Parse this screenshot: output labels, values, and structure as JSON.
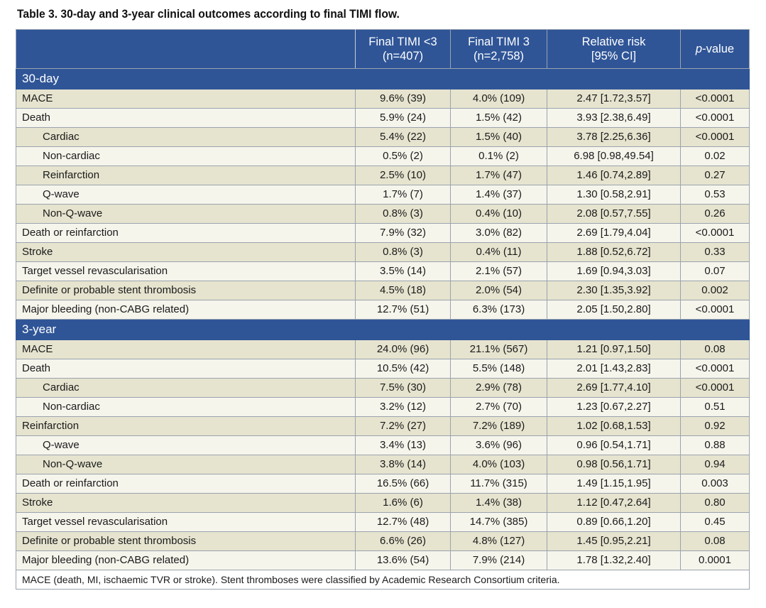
{
  "caption": "Table 3. 30-day and 3-year clinical outcomes according to final TIMI flow.",
  "headers": {
    "col1_line1": "Final TIMI <3",
    "col1_line2": "(n=407)",
    "col2_line1": "Final TIMI 3",
    "col2_line2": "(n=2,758)",
    "col3_line1": "Relative risk",
    "col3_line2": "[95% CI]",
    "col4_italic": "p",
    "col4_rest": "-value"
  },
  "sections": [
    {
      "title": "30-day",
      "rows": [
        {
          "label": "MACE",
          "timi_lt3": "9.6% (39)",
          "timi3": "4.0% (109)",
          "rr": "2.47 [1.72,3.57]",
          "p": "<0.0001"
        },
        {
          "label": "Death",
          "timi_lt3": "5.9% (24)",
          "timi3": "1.5% (42)",
          "rr": "3.93 [2.38,6.49]",
          "p": "<0.0001"
        },
        {
          "label": "Cardiac",
          "timi_lt3": "5.4% (22)",
          "timi3": "1.5% (40)",
          "rr": "3.78 [2.25,6.36]",
          "p": "<0.0001"
        },
        {
          "label": "Non-cardiac",
          "timi_lt3": "0.5% (2)",
          "timi3": "0.1% (2)",
          "rr": "6.98 [0.98,49.54]",
          "p": "0.02"
        },
        {
          "label": "Reinfarction",
          "timi_lt3": "2.5% (10)",
          "timi3": "1.7% (47)",
          "rr": "1.46 [0.74,2.89]",
          "p": "0.27"
        },
        {
          "label": "Q-wave",
          "timi_lt3": "1.7% (7)",
          "timi3": "1.4% (37)",
          "rr": "1.30 [0.58,2.91]",
          "p": "0.53"
        },
        {
          "label": "Non-Q-wave",
          "timi_lt3": "0.8% (3)",
          "timi3": "0.4% (10)",
          "rr": "2.08 [0.57,7.55]",
          "p": "0.26"
        },
        {
          "label": "Death or reinfarction",
          "timi_lt3": "7.9% (32)",
          "timi3": "3.0% (82)",
          "rr": "2.69 [1.79,4.04]",
          "p": "<0.0001"
        },
        {
          "label": "Stroke",
          "timi_lt3": "0.8% (3)",
          "timi3": "0.4% (11)",
          "rr": "1.88 [0.52,6.72]",
          "p": "0.33"
        },
        {
          "label": "Target vessel revascularisation",
          "timi_lt3": "3.5% (14)",
          "timi3": "2.1% (57)",
          "rr": "1.69 [0.94,3.03]",
          "p": "0.07"
        },
        {
          "label": "Definite or probable stent thrombosis",
          "timi_lt3": "4.5% (18)",
          "timi3": "2.0% (54)",
          "rr": "2.30 [1.35,3.92]",
          "p": "0.002"
        },
        {
          "label": "Major bleeding (non-CABG related)",
          "timi_lt3": "12.7% (51)",
          "timi3": "6.3% (173)",
          "rr": "2.05 [1.50,2.80]",
          "p": "<0.0001"
        }
      ]
    },
    {
      "title": "3-year",
      "rows": [
        {
          "label": "MACE",
          "timi_lt3": "24.0% (96)",
          "timi3": "21.1% (567)",
          "rr": "1.21 [0.97,1.50]",
          "p": "0.08"
        },
        {
          "label": "Death",
          "timi_lt3": "10.5% (42)",
          "timi3": "5.5% (148)",
          "rr": "2.01 [1.43,2.83]",
          "p": "<0.0001"
        },
        {
          "label": "Cardiac",
          "timi_lt3": "7.5% (30)",
          "timi3": "2.9% (78)",
          "rr": "2.69 [1.77,4.10]",
          "p": "<0.0001"
        },
        {
          "label": "Non-cardiac",
          "timi_lt3": "3.2% (12)",
          "timi3": "2.7% (70)",
          "rr": "1.23 [0.67,2.27]",
          "p": "0.51"
        },
        {
          "label": "Reinfarction",
          "timi_lt3": "7.2% (27)",
          "timi3": "7.2% (189)",
          "rr": "1.02 [0.68,1.53]",
          "p": "0.92"
        },
        {
          "label": "Q-wave",
          "timi_lt3": "3.4% (13)",
          "timi3": "3.6% (96)",
          "rr": "0.96 [0.54,1.71]",
          "p": "0.88"
        },
        {
          "label": "Non-Q-wave",
          "timi_lt3": "3.8% (14)",
          "timi3": "4.0% (103)",
          "rr": "0.98 [0.56,1.71]",
          "p": "0.94"
        },
        {
          "label": "Death or reinfarction",
          "timi_lt3": "16.5% (66)",
          "timi3": "11.7% (315)",
          "rr": "1.49 [1.15,1.95]",
          "p": "0.003"
        },
        {
          "label": "Stroke",
          "timi_lt3": "1.6% (6)",
          "timi3": "1.4% (38)",
          "rr": "1.12 [0.47,2.64]",
          "p": "0.80"
        },
        {
          "label": "Target vessel revascularisation",
          "timi_lt3": "12.7% (48)",
          "timi3": "14.7% (385)",
          "rr": "0.89 [0.66,1.20]",
          "p": "0.45"
        },
        {
          "label": "Definite or probable stent thrombosis",
          "timi_lt3": "6.6% (26)",
          "timi3": "4.8% (127)",
          "rr": "1.45 [0.95,2.21]",
          "p": "0.08"
        },
        {
          "label": "Major bleeding (non-CABG related)",
          "timi_lt3": "13.6% (54)",
          "timi3": "7.9% (214)",
          "rr": "1.78 [1.32,2.40]",
          "p": "0.0001"
        }
      ]
    }
  ],
  "footnote": "MACE (death, MI, ischaemic TVR or stroke). Stent thromboses were classified by Academic Research Consortium criteria.",
  "colors": {
    "header_blue": "#2f5597",
    "shade_row": "#e6e4cf",
    "light_row": "#f6f5ec"
  }
}
